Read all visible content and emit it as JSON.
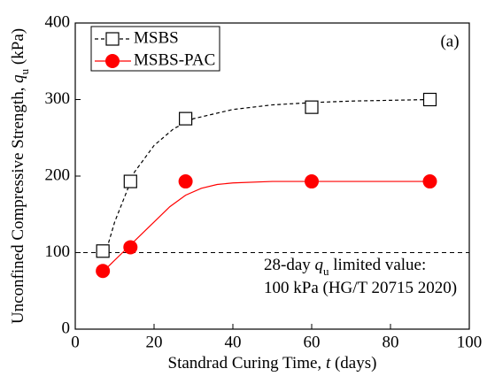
{
  "chart_data": {
    "type": "scatter",
    "panel_label": "(a)",
    "x_label": [
      "Standrad Curing Time, ",
      "t",
      " (days)"
    ],
    "y_label": [
      "Unconfined Compressive Strength, ",
      "q",
      "u",
      " (kPa)"
    ],
    "xlim": [
      0,
      100
    ],
    "xticks": [
      0,
      20,
      40,
      60,
      80,
      100
    ],
    "ylim": [
      0,
      400
    ],
    "yticks": [
      0,
      100,
      200,
      300,
      400
    ],
    "legend_position": "upper left",
    "reference_line": {
      "value": 100,
      "color": "#000000",
      "label_lines": [
        [
          "28-day ",
          "q",
          "u",
          " limited value:"
        ],
        [
          "100 kPa (HG/T 20715 2020)"
        ]
      ]
    },
    "series": [
      {
        "name": "MSBS",
        "color": "#000000",
        "marker": "square",
        "line_style": "dashed",
        "x": [
          7,
          14,
          28,
          60,
          90
        ],
        "values": [
          102,
          193,
          275,
          290,
          300
        ],
        "curve": {
          "x": [
            8,
            10,
            15,
            20,
            25,
            30,
            40,
            50,
            60,
            70,
            80,
            90
          ],
          "values": [
            105,
            140,
            205,
            240,
            262,
            275,
            287,
            293,
            296,
            298,
            299,
            300
          ]
        }
      },
      {
        "name": "MSBS-PAC",
        "color": "#ff0000",
        "marker": "circle",
        "line_style": "solid",
        "x": [
          7,
          14,
          28,
          60,
          90
        ],
        "values": [
          76,
          107,
          193,
          193,
          193
        ],
        "curve": {
          "x": [
            8,
            12,
            16,
            20,
            24,
            28,
            32,
            36,
            40,
            50,
            60,
            70,
            80,
            90
          ],
          "values": [
            80,
            100,
            120,
            140,
            160,
            175,
            184,
            189,
            191,
            193,
            193,
            193,
            193,
            193
          ]
        }
      }
    ]
  }
}
